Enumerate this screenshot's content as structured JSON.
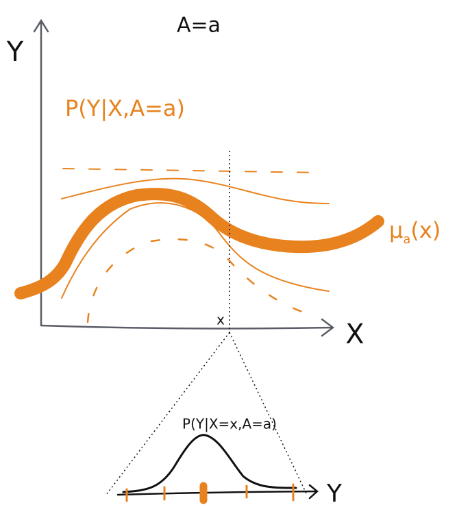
{
  "title": "A=a",
  "axes": {
    "y_label": "Y",
    "x_label": "X",
    "x_point": "x"
  },
  "distribution_label": "P(Y|X,A=a)",
  "mean_label": {
    "symbol": "μ",
    "subscript": "a",
    "argument": "(x)"
  },
  "inset": {
    "label": "P(Y|X=x,A=a)",
    "axis_label": "Y"
  }
}
